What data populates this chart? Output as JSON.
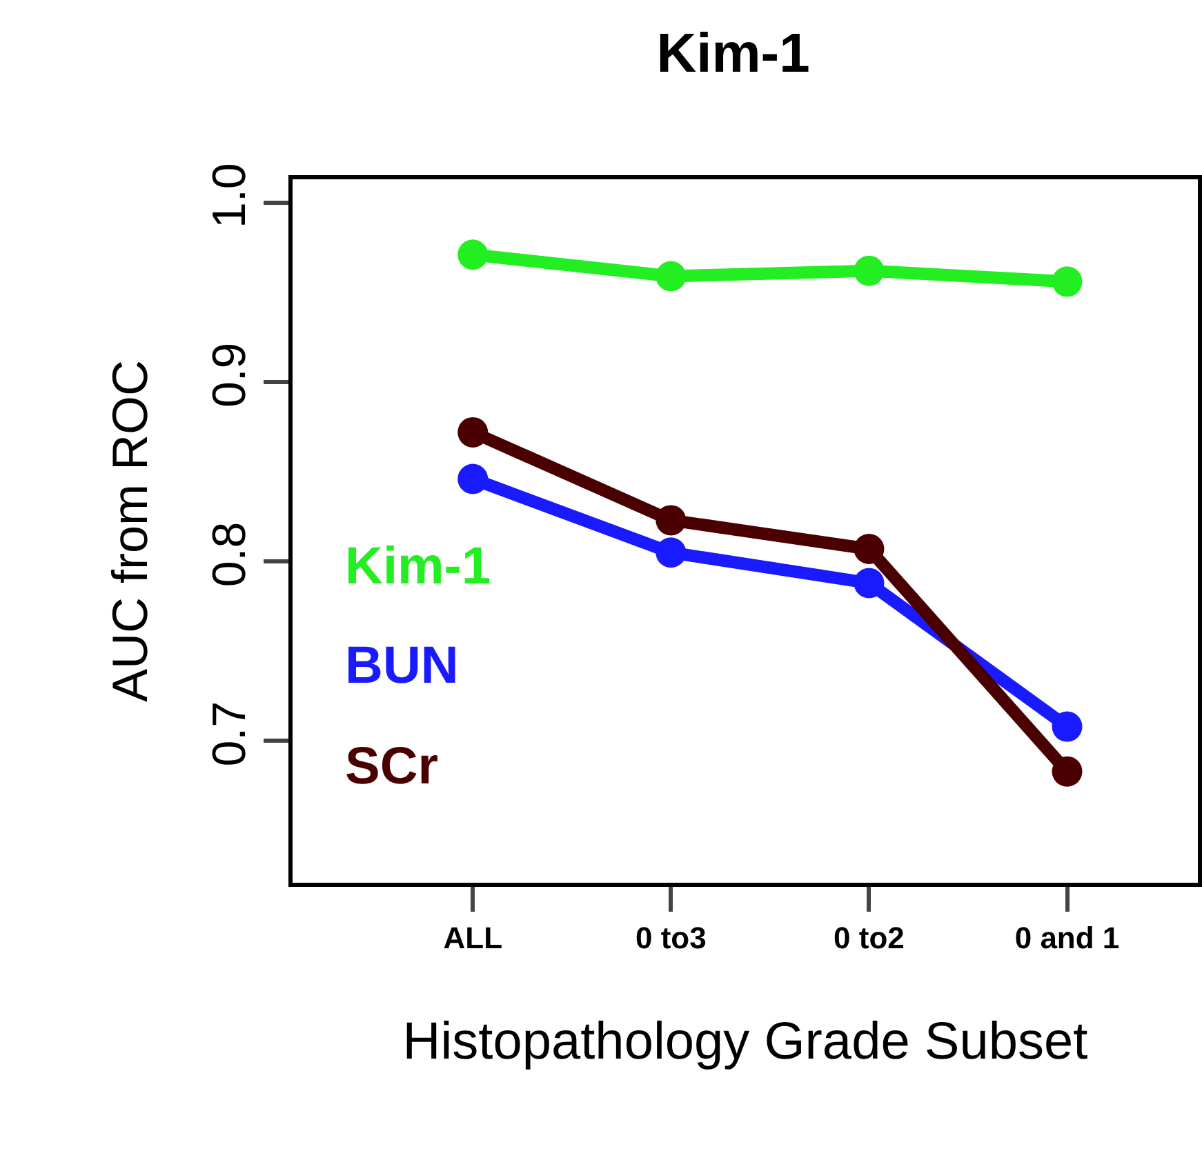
{
  "chart_data": {
    "type": "line",
    "title": "Kim-1",
    "xlabel": "Histopathology Grade Subset",
    "ylabel": "AUC from ROC",
    "categories": [
      "ALL",
      "0 to3",
      "0 to2",
      "0 and 1"
    ],
    "series": [
      {
        "name": "Kim-1",
        "color": "#22ee22",
        "values": [
          0.971,
          0.959,
          0.962,
          0.956
        ]
      },
      {
        "name": "BUN",
        "color": "#1a1aff",
        "values": [
          0.846,
          0.805,
          0.788,
          0.708
        ]
      },
      {
        "name": "SCr",
        "color": "#4a0000",
        "values": [
          0.872,
          0.823,
          0.807,
          0.683
        ]
      }
    ],
    "ylim": [
      0.621,
      1.013
    ],
    "yticks": [
      {
        "value": 0.7,
        "label": "0.7"
      },
      {
        "value": 0.8,
        "label": "0.8"
      },
      {
        "value": 0.9,
        "label": "0.9"
      },
      {
        "value": 1.0,
        "label": "1.0"
      }
    ],
    "grid": false,
    "legend": "left",
    "marker": "circle",
    "line_style": "solid"
  }
}
